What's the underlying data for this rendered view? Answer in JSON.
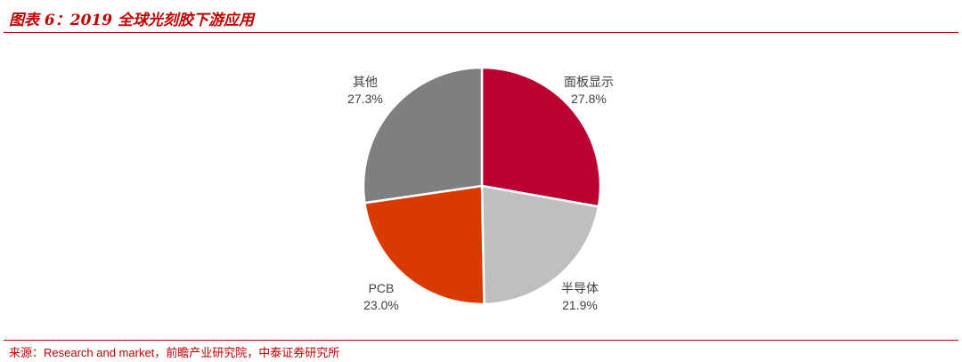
{
  "header": {
    "title": "图表 6：2019 全球光刻胶下游应用"
  },
  "chart_data": {
    "type": "pie",
    "start_angle_deg": 90,
    "direction": "clockwise",
    "slices": [
      {
        "label": "面板显示",
        "value": 27.8,
        "display": "27.8%",
        "color": "#bc0030"
      },
      {
        "label": "半导体",
        "value": 21.9,
        "display": "21.9%",
        "color": "#bfbfbf"
      },
      {
        "label": "PCB",
        "value": 23.0,
        "display": "23.0%",
        "color": "#d93a00"
      },
      {
        "label": "其他",
        "value": 27.3,
        "display": "27.3%",
        "color": "#7f7f7f"
      }
    ]
  },
  "footer": {
    "source": "来源：Research and market，前瞻产业研究院，中泰证券研究所"
  }
}
